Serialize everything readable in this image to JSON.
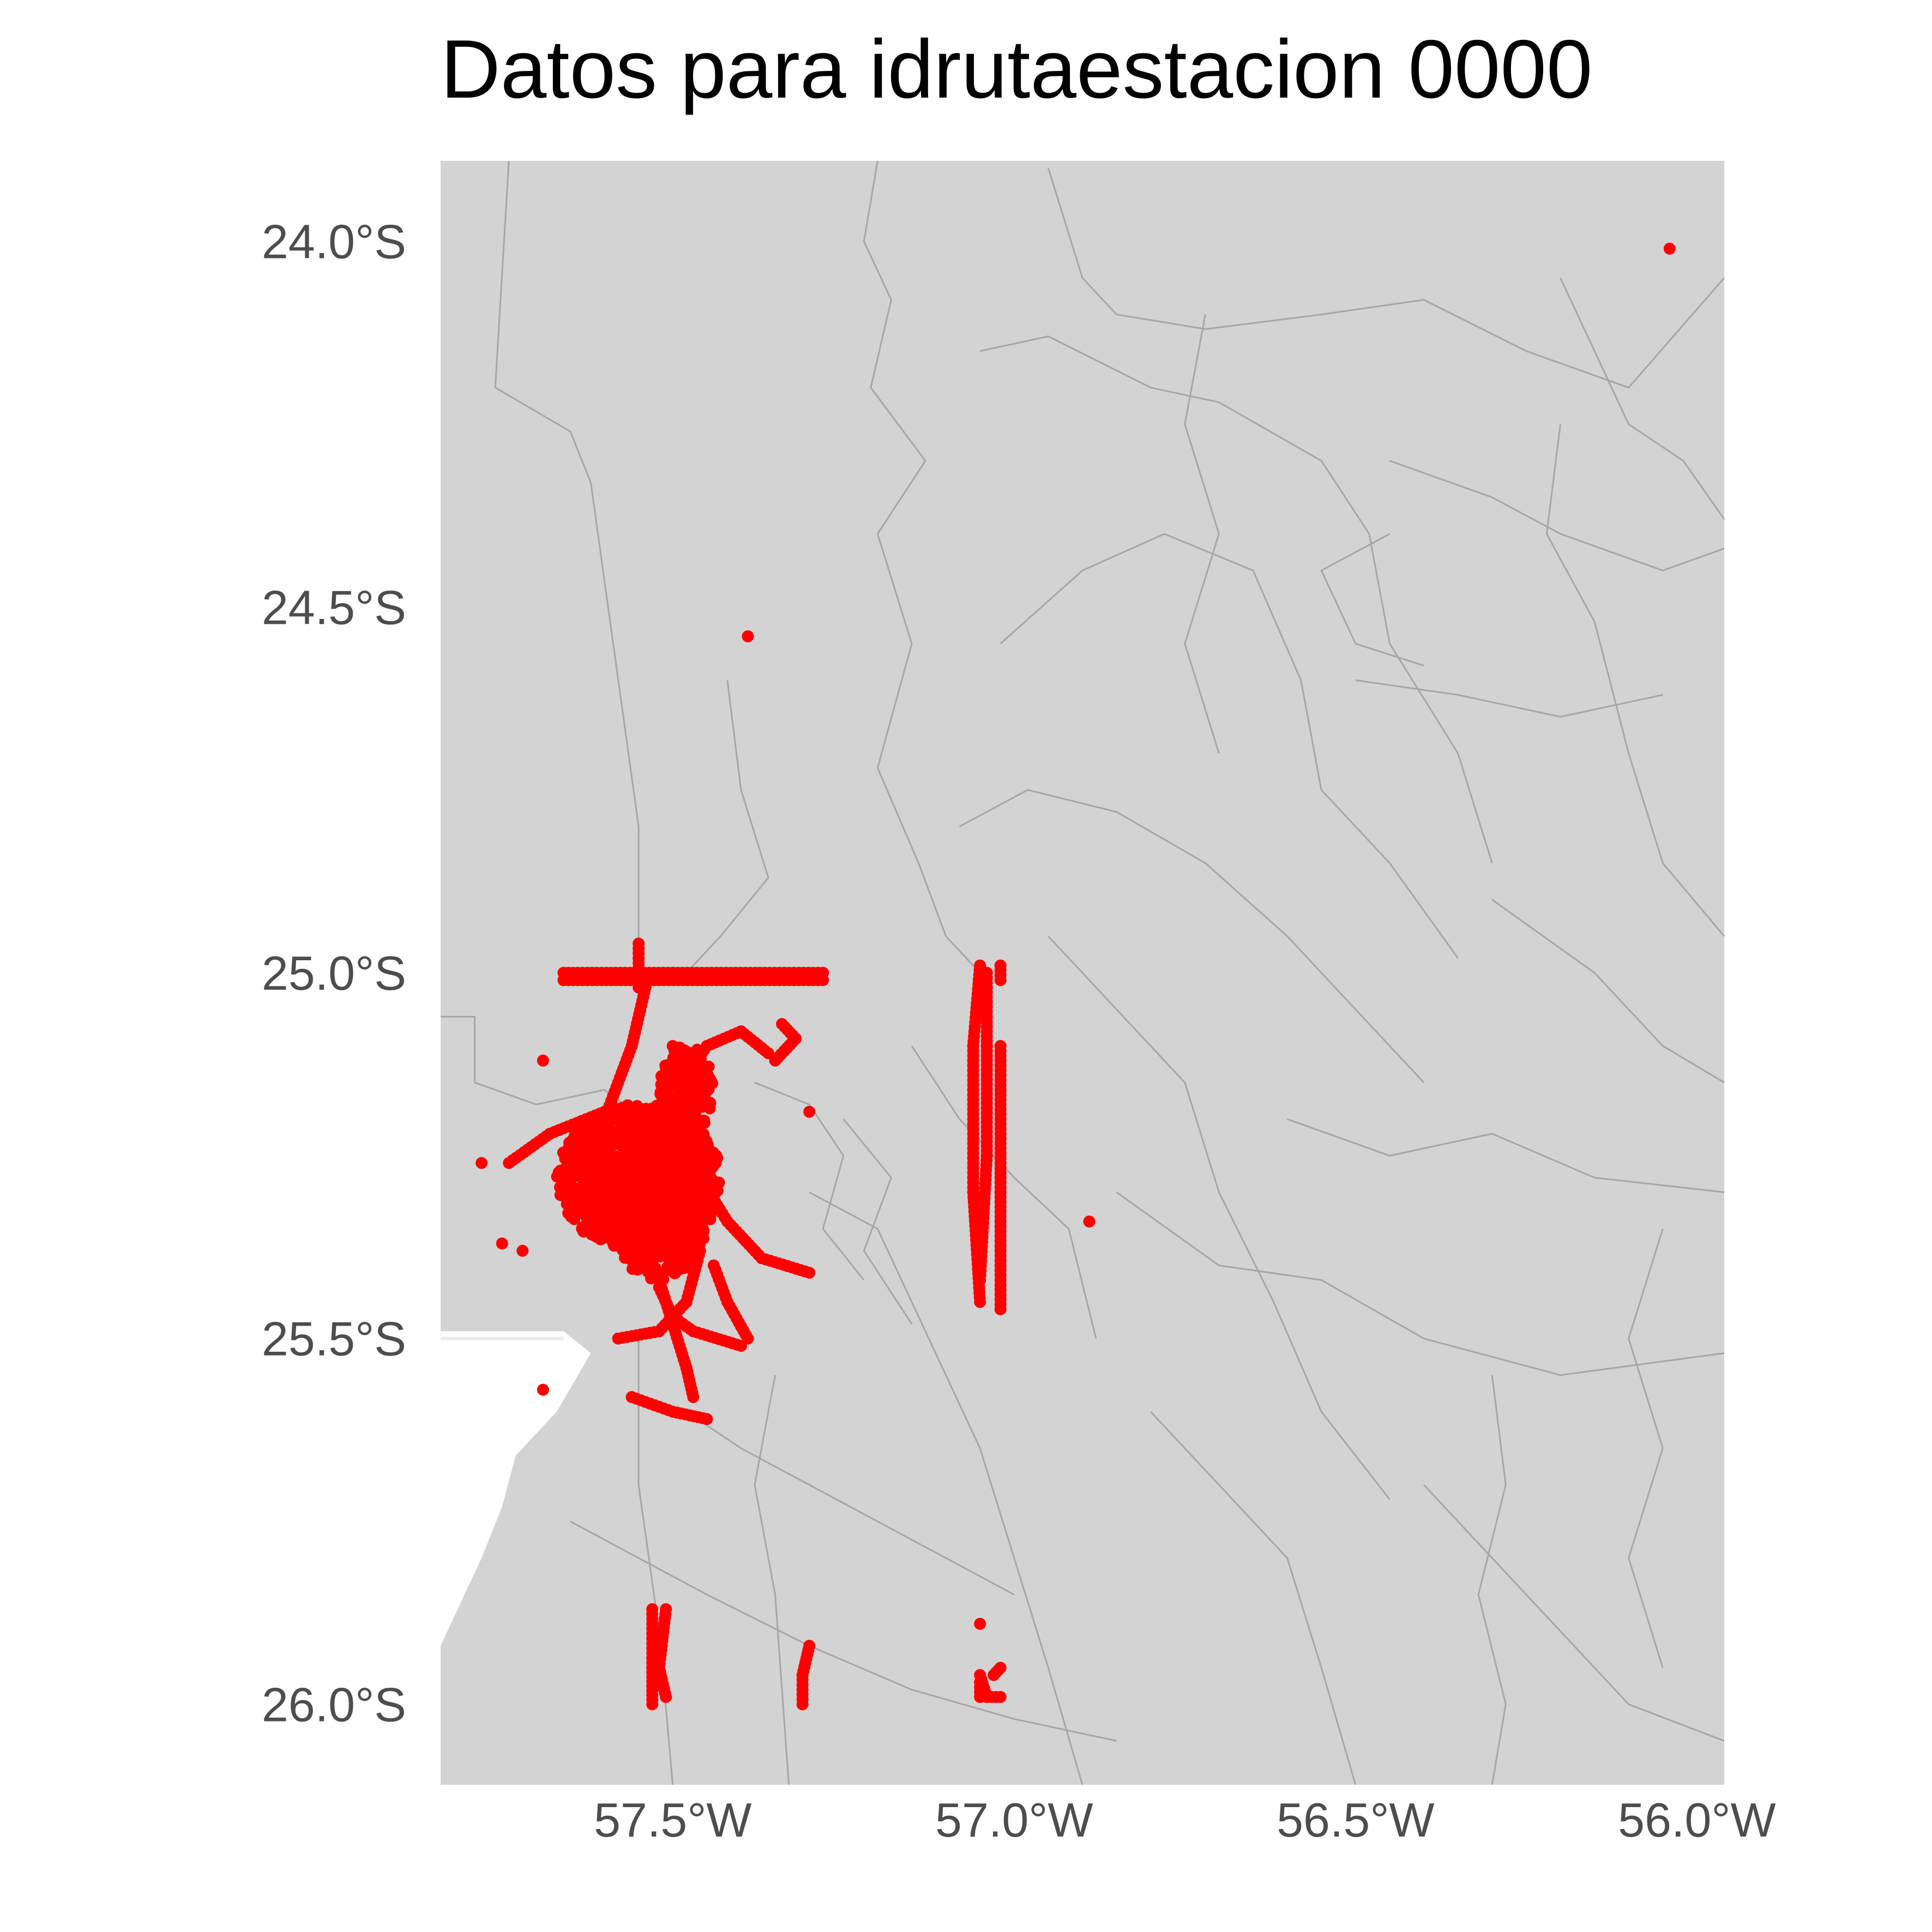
{
  "title": "Datos para idrutaestacion 0000",
  "chart_data": {
    "type": "scatter",
    "title": "Datos para idrutaestacion 0000",
    "xlabel": "",
    "ylabel": "",
    "x_axis": {
      "ticks": [
        -57.5,
        -57.0,
        -56.5,
        -56.0
      ],
      "tick_labels": [
        "57.5°W",
        "57.0°W",
        "56.5°W",
        "56.0°W"
      ],
      "range": [
        -57.84,
        -55.96
      ]
    },
    "y_axis": {
      "ticks": [
        -24.0,
        -24.5,
        -25.0,
        -25.5,
        -26.0
      ],
      "tick_labels": [
        "24.0°S",
        "24.5°S",
        "25.0°S",
        "25.5°S",
        "26.0°S"
      ],
      "range": [
        -26.11,
        -23.89
      ]
    },
    "background": {
      "land_color": "#d3d3d3",
      "boundary_color": "#a6a6a6",
      "point_color": "#ff0000"
    },
    "grid": "minimal",
    "legend": "none",
    "series": [
      {
        "isolated_points": [
          [
            -56.04,
            -24.01
          ],
          [
            -57.39,
            -24.54
          ],
          [
            -56.89,
            -25.34
          ],
          [
            -57.3,
            -25.19
          ],
          [
            -57.78,
            -25.26
          ],
          [
            -57.75,
            -25.37
          ],
          [
            -57.69,
            -25.12
          ],
          [
            -57.72,
            -25.38
          ],
          [
            -57.69,
            -25.57
          ],
          [
            -57.56,
            -25.58
          ],
          [
            -57.05,
            -25.89
          ]
        ],
        "tracks": [
          [
            [
              -57.66,
              -25.0
            ],
            [
              -57.5,
              -25.0
            ],
            [
              -57.28,
              -25.0
            ]
          ],
          [
            [
              -57.66,
              -25.01
            ],
            [
              -57.45,
              -25.01
            ],
            [
              -57.28,
              -25.01
            ]
          ],
          [
            [
              -57.55,
              -24.96
            ],
            [
              -57.55,
              -25.02
            ]
          ],
          [
            [
              -57.54,
              -25.02
            ],
            [
              -57.56,
              -25.1
            ],
            [
              -57.6,
              -25.2
            ],
            [
              -57.62,
              -25.28
            ]
          ],
          [
            [
              -57.74,
              -25.26
            ],
            [
              -57.68,
              -25.22
            ],
            [
              -57.6,
              -25.19
            ],
            [
              -57.55,
              -25.21
            ]
          ],
          [
            [
              -57.48,
              -25.14
            ],
            [
              -57.45,
              -25.1
            ],
            [
              -57.4,
              -25.08
            ],
            [
              -57.36,
              -25.11
            ]
          ],
          [
            [
              -57.34,
              -25.07
            ],
            [
              -57.32,
              -25.09
            ],
            [
              -57.35,
              -25.12
            ]
          ],
          [
            [
              -57.5,
              -25.1
            ],
            [
              -57.48,
              -25.15
            ],
            [
              -57.47,
              -25.2
            ]
          ],
          [
            [
              -57.46,
              -25.28
            ],
            [
              -57.42,
              -25.34
            ],
            [
              -57.37,
              -25.39
            ],
            [
              -57.3,
              -25.41
            ]
          ],
          [
            [
              -57.46,
              -25.38
            ],
            [
              -57.48,
              -25.45
            ],
            [
              -57.52,
              -25.49
            ],
            [
              -57.58,
              -25.5
            ]
          ],
          [
            [
              -57.52,
              -25.43
            ],
            [
              -57.5,
              -25.47
            ],
            [
              -57.47,
              -25.49
            ],
            [
              -57.4,
              -25.51
            ]
          ],
          [
            [
              -57.44,
              -25.4
            ],
            [
              -57.42,
              -25.45
            ],
            [
              -57.39,
              -25.5
            ]
          ],
          [
            [
              -57.52,
              -25.42
            ],
            [
              -57.5,
              -25.48
            ],
            [
              -57.48,
              -25.54
            ],
            [
              -57.47,
              -25.58
            ]
          ],
          [
            [
              -57.56,
              -25.58
            ],
            [
              -57.5,
              -25.6
            ],
            [
              -57.45,
              -25.61
            ]
          ],
          [
            [
              -57.05,
              -24.99
            ],
            [
              -57.06,
              -25.1
            ],
            [
              -57.06,
              -25.3
            ],
            [
              -57.05,
              -25.45
            ]
          ],
          [
            [
              -57.04,
              -25.0
            ],
            [
              -57.04,
              -25.1
            ],
            [
              -57.04,
              -25.25
            ],
            [
              -57.05,
              -25.42
            ]
          ],
          [
            [
              -57.02,
              -25.1
            ],
            [
              -57.02,
              -25.3
            ],
            [
              -57.02,
              -25.46
            ]
          ],
          [
            [
              -57.02,
              -24.99
            ],
            [
              -57.02,
              -25.01
            ]
          ],
          [
            [
              -57.53,
              -25.87
            ],
            [
              -57.53,
              -25.95
            ],
            [
              -57.53,
              -26.0
            ]
          ],
          [
            [
              -57.51,
              -25.87
            ],
            [
              -57.52,
              -25.95
            ],
            [
              -57.51,
              -25.99
            ]
          ],
          [
            [
              -57.3,
              -25.92
            ],
            [
              -57.31,
              -25.96
            ],
            [
              -57.31,
              -26.0
            ]
          ],
          [
            [
              -57.05,
              -25.96
            ],
            [
              -57.04,
              -25.99
            ],
            [
              -57.02,
              -25.99
            ]
          ],
          [
            [
              -57.05,
              -25.97
            ],
            [
              -57.05,
              -25.99
            ]
          ],
          [
            [
              -57.02,
              -25.95
            ],
            [
              -57.03,
              -25.96
            ]
          ]
        ],
        "dense_clusters": [
          {
            "center": [
              -57.55,
              -25.28
            ],
            "spread": [
              0.12,
              0.1
            ],
            "count": 900
          },
          {
            "center": [
              -57.52,
              -25.3
            ],
            "spread": [
              0.08,
              0.12
            ],
            "count": 500
          },
          {
            "center": [
              -57.48,
              -25.16
            ],
            "spread": [
              0.04,
              0.06
            ],
            "count": 150
          }
        ]
      }
    ]
  }
}
